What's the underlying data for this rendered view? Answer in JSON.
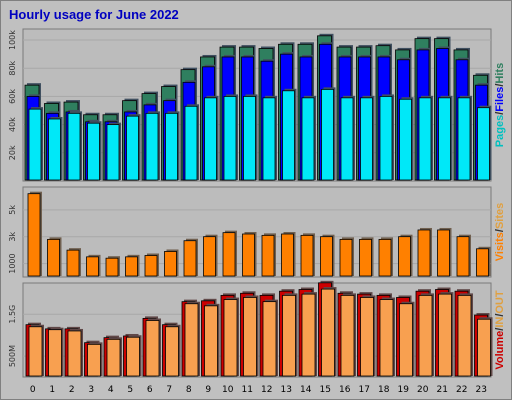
{
  "title": "Hourly usage for June 2022",
  "colors": {
    "background": "#c0c0c0",
    "panel": "#bcbcbc",
    "hits": "#2f7f5f",
    "files": "#0000ff",
    "pages": "#00e8f8",
    "visits": "#ff8000",
    "sites": "#ff8000",
    "kbin": "#cc0000",
    "kbout": "#f8a050",
    "title": "#0000c0"
  },
  "legends": {
    "top": [
      {
        "text": "Pages",
        "color": "#00c0c0"
      },
      {
        "text": "/",
        "color": "#333333"
      },
      {
        "text": "Files",
        "color": "#0000ff"
      },
      {
        "text": "/",
        "color": "#333333"
      },
      {
        "text": "Hits",
        "color": "#2f7f5f"
      }
    ],
    "middle": [
      {
        "text": "Visits",
        "color": "#ff8000"
      },
      {
        "text": "/",
        "color": "#333333"
      },
      {
        "text": "Sites",
        "color": "#e0a040"
      }
    ],
    "bottom": [
      {
        "text": "Volume",
        "color": "#cc0000"
      },
      {
        "text": "/",
        "color": "#333333"
      },
      {
        "text": "IN",
        "color": "#e0a040"
      },
      {
        "text": "/",
        "color": "#333333"
      },
      {
        "text": "OUT",
        "color": "#e0a040"
      }
    ]
  },
  "chart_data": [
    {
      "type": "bar",
      "panel": "top",
      "categories": [
        "0",
        "1",
        "2",
        "3",
        "4",
        "5",
        "6",
        "7",
        "8",
        "9",
        "10",
        "11",
        "12",
        "13",
        "14",
        "15",
        "16",
        "17",
        "18",
        "19",
        "20",
        "21",
        "22",
        "23"
      ],
      "y_ticks": [
        {
          "label": "20k",
          "value": 20000
        },
        {
          "label": "40k",
          "value": 40000
        },
        {
          "label": "60k",
          "value": 60000
        },
        {
          "label": "80k",
          "value": 80000
        },
        {
          "label": "100k",
          "value": 100000
        }
      ],
      "ylim": [
        0,
        105000
      ],
      "series": [
        {
          "name": "Hits",
          "values": [
            68000,
            55000,
            56000,
            47000,
            47000,
            57000,
            62000,
            67000,
            79000,
            88000,
            95000,
            95000,
            94000,
            97000,
            97000,
            103000,
            95000,
            95000,
            96000,
            93000,
            101000,
            101000,
            93000,
            75000
          ]
        },
        {
          "name": "Files",
          "values": [
            60000,
            48000,
            49000,
            42000,
            42000,
            49000,
            54000,
            57000,
            70000,
            81000,
            88000,
            88000,
            85000,
            90000,
            88000,
            97000,
            88000,
            88000,
            88000,
            86000,
            93000,
            94000,
            86000,
            68000
          ]
        },
        {
          "name": "Pages",
          "values": [
            51000,
            44000,
            48000,
            41000,
            40000,
            46000,
            48000,
            48000,
            53000,
            59000,
            60000,
            60000,
            59000,
            64000,
            59000,
            65000,
            59000,
            59000,
            60000,
            58000,
            59000,
            59000,
            59000,
            52000
          ]
        }
      ]
    },
    {
      "type": "bar",
      "panel": "middle",
      "categories": [
        "0",
        "1",
        "2",
        "3",
        "4",
        "5",
        "6",
        "7",
        "8",
        "9",
        "10",
        "11",
        "12",
        "13",
        "14",
        "15",
        "16",
        "17",
        "18",
        "19",
        "20",
        "21",
        "22",
        "23"
      ],
      "y_ticks": [
        {
          "label": "1000",
          "value": 1000
        },
        {
          "label": "3k",
          "value": 3000
        },
        {
          "label": "5k",
          "value": 5000
        }
      ],
      "ylim": [
        0,
        6400
      ],
      "series": [
        {
          "name": "Visits",
          "values": [
            6200,
            2800,
            2000,
            1500,
            1400,
            1500,
            1600,
            1900,
            2700,
            3000,
            3300,
            3200,
            3100,
            3200,
            3100,
            3000,
            2800,
            2800,
            2800,
            3000,
            3500,
            3500,
            3000,
            2100
          ]
        }
      ]
    },
    {
      "type": "bar",
      "panel": "bottom",
      "categories": [
        "0",
        "1",
        "2",
        "3",
        "4",
        "5",
        "6",
        "7",
        "8",
        "9",
        "10",
        "11",
        "12",
        "13",
        "14",
        "15",
        "16",
        "17",
        "18",
        "19",
        "20",
        "21",
        "22",
        "23"
      ],
      "y_ticks": [
        {
          "label": "500M",
          "value": 500
        },
        {
          "label": "1.5G",
          "value": 1500
        }
      ],
      "ylim": [
        0,
        2150
      ],
      "series": [
        {
          "name": "IN",
          "values": [
            1250,
            1150,
            1150,
            820,
            940,
            980,
            1400,
            1250,
            1800,
            1820,
            1950,
            2000,
            1950,
            2050,
            2090,
            2250,
            2000,
            1980,
            1950,
            1900,
            2050,
            2090,
            2050,
            1480
          ]
        },
        {
          "name": "OUT",
          "values": [
            1200,
            1130,
            1100,
            780,
            900,
            950,
            1350,
            1200,
            1750,
            1700,
            1850,
            1900,
            1800,
            1950,
            1980,
            2100,
            1950,
            1900,
            1850,
            1750,
            1950,
            1980,
            1950,
            1380
          ]
        }
      ]
    }
  ]
}
